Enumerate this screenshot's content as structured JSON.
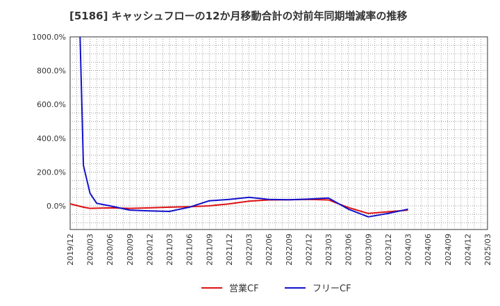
{
  "chart_data": {
    "type": "line",
    "title": "[5186]  キャッシュフローの12か月移動合計の対前年同期増減率の推移",
    "xlabel": "",
    "ylabel": "",
    "ylim": [
      -140,
      1000
    ],
    "y_ticks": [
      "1000.0%",
      "800.0%",
      "600.0%",
      "400.0%",
      "200.0%",
      "0.0%"
    ],
    "y_tick_values": [
      1000,
      800,
      600,
      400,
      200,
      0
    ],
    "x_ticks": [
      "2019/12",
      "2020/03",
      "2020/06",
      "2020/09",
      "2020/12",
      "2021/03",
      "2021/06",
      "2021/09",
      "2021/12",
      "2022/03",
      "2022/06",
      "2022/09",
      "2022/12",
      "2023/03",
      "2023/06",
      "2023/09",
      "2023/12",
      "2024/03",
      "2024/06",
      "2024/09",
      "2024/12",
      "2025/03"
    ],
    "x_range_months": [
      0,
      63
    ],
    "grid": true,
    "legend_position": "bottom-center",
    "series": [
      {
        "name": "営業CF",
        "color": "#dd1111",
        "points": [
          [
            0,
            12
          ],
          [
            1,
            2
          ],
          [
            2,
            -8
          ],
          [
            3,
            -15
          ],
          [
            6,
            -12
          ],
          [
            9,
            -15
          ],
          [
            12,
            -12
          ],
          [
            15,
            -8
          ],
          [
            18,
            -5
          ],
          [
            21,
            0
          ],
          [
            24,
            12
          ],
          [
            27,
            28
          ],
          [
            30,
            35
          ],
          [
            33,
            36
          ],
          [
            36,
            38
          ],
          [
            39,
            35
          ],
          [
            42,
            -10
          ],
          [
            45,
            -45
          ],
          [
            48,
            -35
          ],
          [
            51,
            -25
          ]
        ]
      },
      {
        "name": "フリーCF",
        "color": "#1111cc",
        "points": [
          [
            1.5,
            1000
          ],
          [
            2,
            240
          ],
          [
            3,
            75
          ],
          [
            4,
            15
          ],
          [
            6,
            0
          ],
          [
            9,
            -25
          ],
          [
            12,
            -30
          ],
          [
            15,
            -33
          ],
          [
            18,
            -8
          ],
          [
            21,
            30
          ],
          [
            24,
            38
          ],
          [
            27,
            50
          ],
          [
            30,
            38
          ],
          [
            33,
            36
          ],
          [
            36,
            40
          ],
          [
            39,
            46
          ],
          [
            42,
            -20
          ],
          [
            45,
            -65
          ],
          [
            48,
            -45
          ],
          [
            51,
            -20
          ]
        ]
      }
    ]
  }
}
